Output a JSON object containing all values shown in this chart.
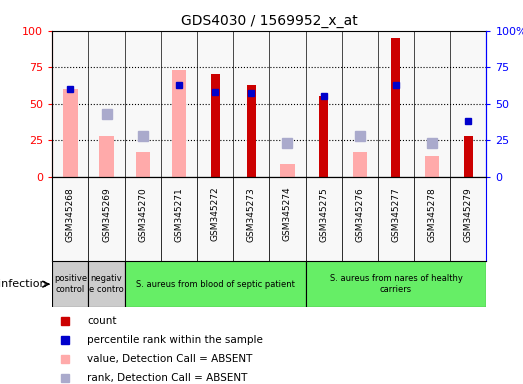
{
  "title": "GDS4030 / 1569952_x_at",
  "samples": [
    "GSM345268",
    "GSM345269",
    "GSM345270",
    "GSM345271",
    "GSM345272",
    "GSM345273",
    "GSM345274",
    "GSM345275",
    "GSM345276",
    "GSM345277",
    "GSM345278",
    "GSM345279"
  ],
  "count": [
    0,
    0,
    0,
    0,
    70,
    63,
    0,
    55,
    0,
    95,
    0,
    28
  ],
  "percentile_rank": [
    60,
    0,
    0,
    63,
    58,
    57,
    0,
    55,
    0,
    63,
    0,
    38
  ],
  "value_absent": [
    60,
    28,
    17,
    73,
    0,
    0,
    9,
    0,
    17,
    0,
    14,
    0
  ],
  "rank_absent": [
    0,
    43,
    28,
    0,
    0,
    0,
    23,
    0,
    28,
    0,
    23,
    0
  ],
  "groups": [
    {
      "label": "positive\ncontrol",
      "start": 0,
      "end": 1,
      "color": "#cccccc"
    },
    {
      "label": "negativ\ne contro",
      "start": 1,
      "end": 2,
      "color": "#cccccc"
    },
    {
      "label": "S. aureus from blood of septic patient",
      "start": 2,
      "end": 7,
      "color": "#66ee66"
    },
    {
      "label": "S. aureus from nares of healthy\ncarriers",
      "start": 7,
      "end": 12,
      "color": "#66ee66"
    }
  ],
  "ylim": [
    0,
    100
  ],
  "count_color": "#cc0000",
  "rank_color": "#0000cc",
  "value_absent_color": "#ffaaaa",
  "rank_absent_color": "#aaaacc",
  "dotted_levels": [
    25,
    50,
    75
  ],
  "background_color": "#ffffff",
  "plot_bg": "#e8e8e8",
  "col_bg": "#f8f8f8"
}
